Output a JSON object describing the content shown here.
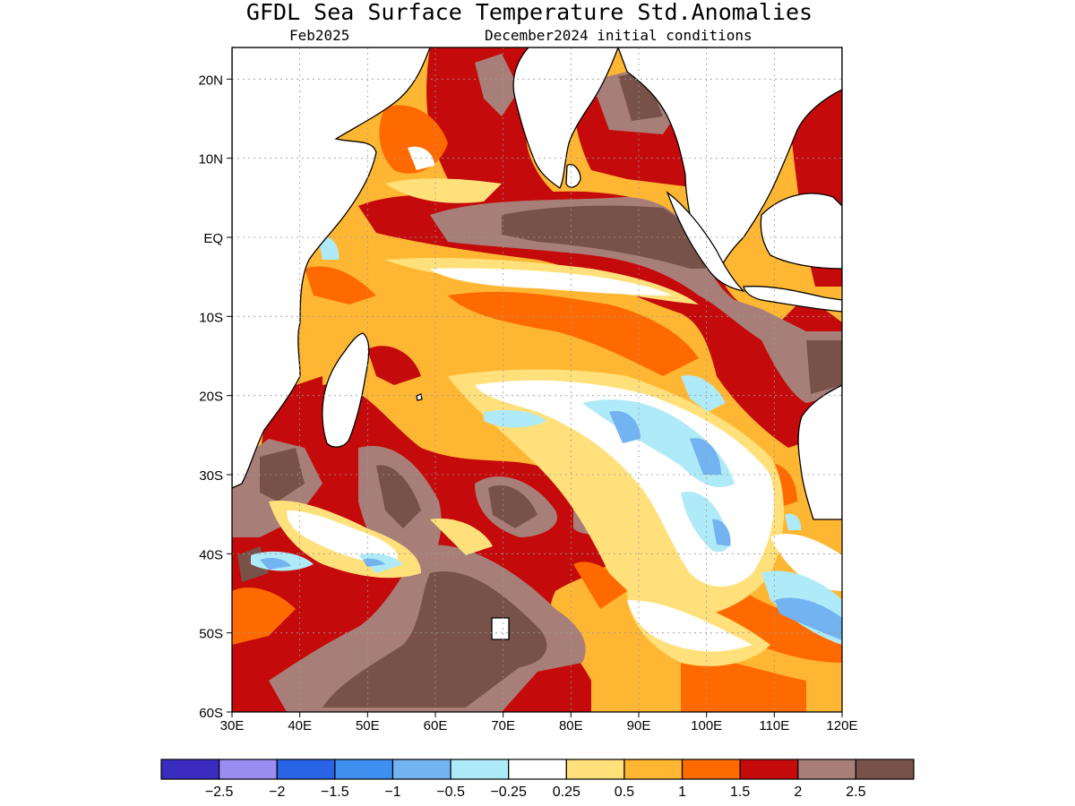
{
  "map": {
    "title": "GFDL Sea Surface Temperature Std.Anomalies",
    "subtitle_left": "Feb2025",
    "subtitle_right": "December2024 initial conditions",
    "lon_range": [
      30,
      120
    ],
    "lat_range": [
      -60,
      24
    ],
    "lon_ticks": [
      "30E",
      "40E",
      "50E",
      "60E",
      "70E",
      "80E",
      "90E",
      "100E",
      "110E",
      "120E"
    ],
    "lat_ticks": [
      "20N",
      "10N",
      "EQ",
      "10S",
      "20S",
      "30S",
      "40S",
      "50S",
      "60S"
    ],
    "colorbar": {
      "colors": [
        "#3a2cbf",
        "#9b8cf0",
        "#2a64e6",
        "#3e8ef0",
        "#74b3f2",
        "#aeeaf7",
        "#ffffff",
        "#ffe07a",
        "#ffb733",
        "#ff6a00",
        "#c40a0a",
        "#a87f78",
        "#785248"
      ],
      "labels": [
        "−2.5",
        "−2",
        "−1.5",
        "−1",
        "−0.5",
        "−0.25",
        "0.25",
        "0.5",
        "1",
        "1.5",
        "2",
        "2.5"
      ]
    }
  }
}
